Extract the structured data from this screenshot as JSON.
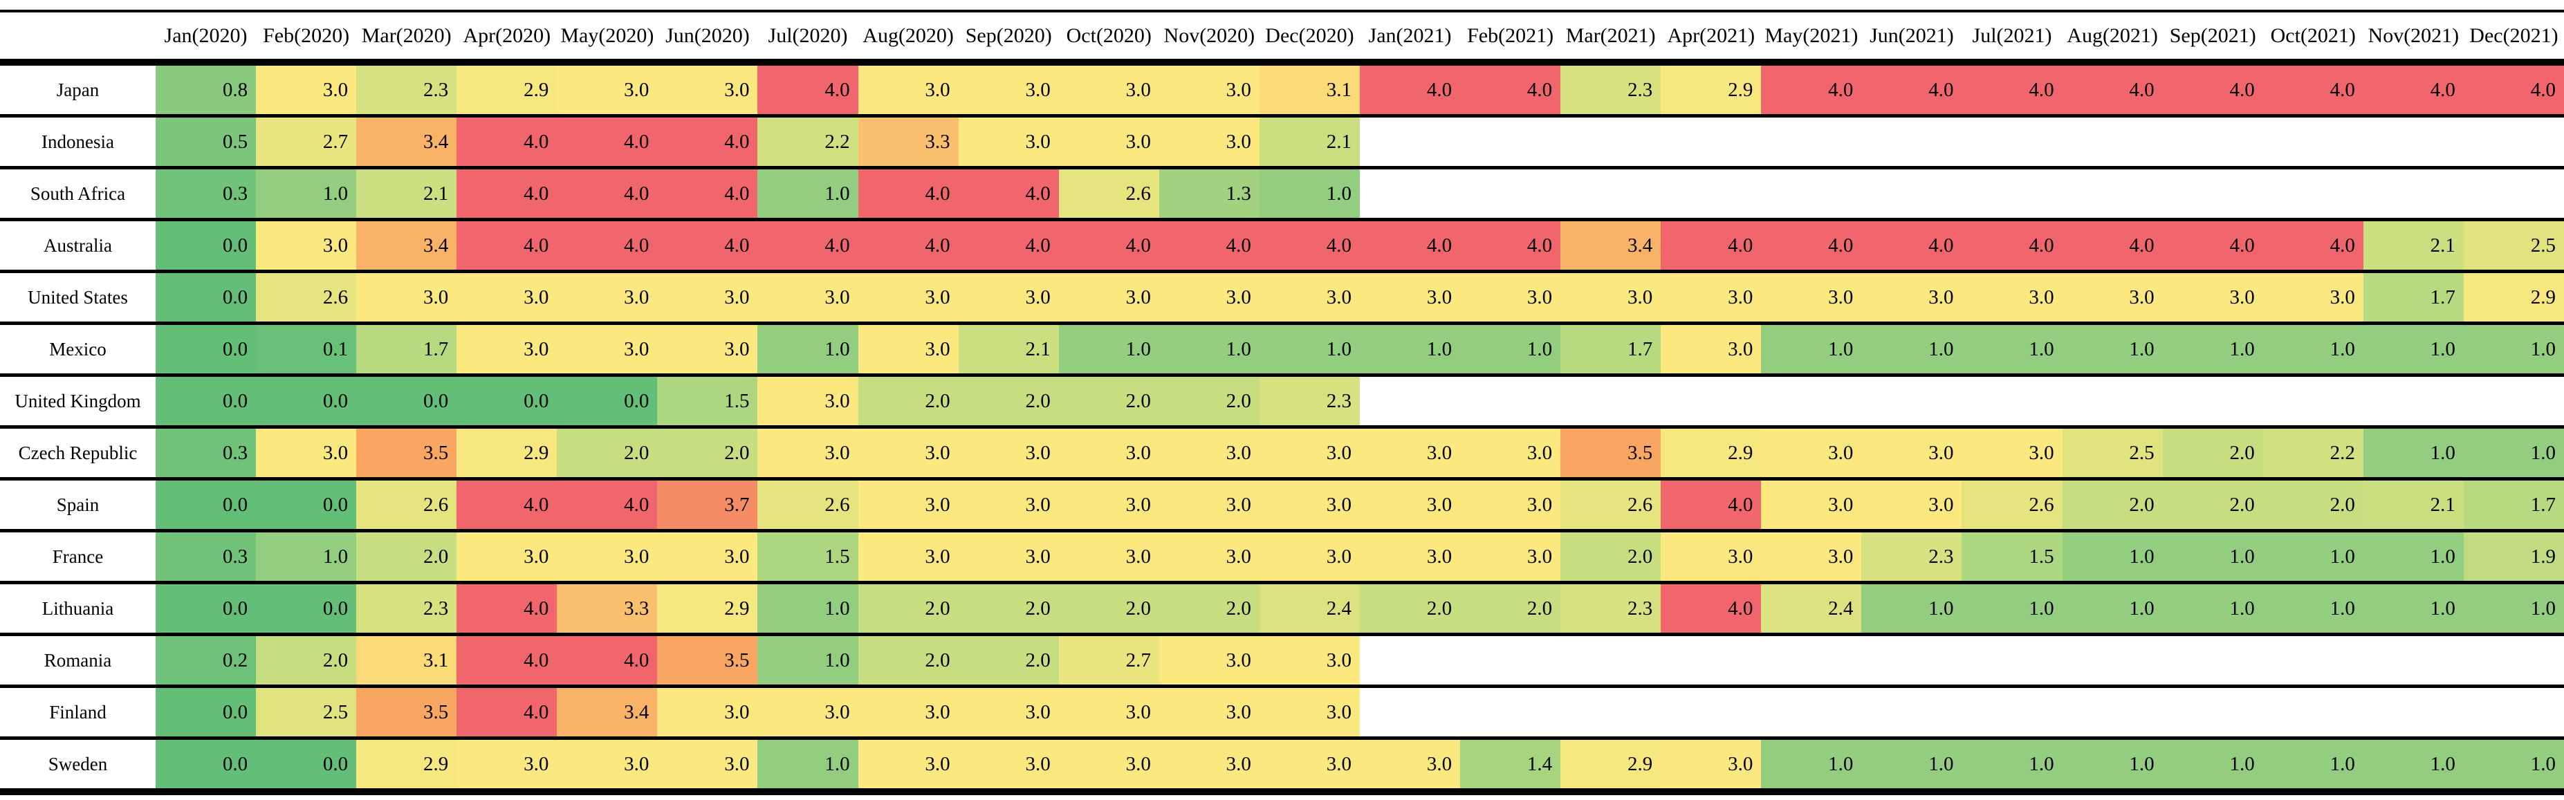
{
  "chart_data": {
    "type": "heatmap",
    "title": "",
    "columns": [
      "Jan(2020)",
      "Feb(2020)",
      "Mar(2020)",
      "Apr(2020)",
      "May(2020)",
      "Jun(2020)",
      "Jul(2020)",
      "Aug(2020)",
      "Sep(2020)",
      "Oct(2020)",
      "Nov(2020)",
      "Dec(2020)",
      "Jan(2021)",
      "Feb(2021)",
      "Mar(2021)",
      "Apr(2021)",
      "May(2021)",
      "Jun(2021)",
      "Jul(2021)",
      "Aug(2021)",
      "Sep(2021)",
      "Oct(2021)",
      "Nov(2021)",
      "Dec(2021)"
    ],
    "rows": [
      {
        "name": "Japan",
        "values": [
          0.8,
          3.0,
          2.3,
          2.9,
          3.0,
          3.0,
          4.0,
          3.0,
          3.0,
          3.0,
          3.0,
          3.1,
          4.0,
          4.0,
          2.3,
          2.9,
          4.0,
          4.0,
          4.0,
          4.0,
          4.0,
          4.0,
          4.0,
          4.0
        ]
      },
      {
        "name": "Indonesia",
        "values": [
          0.5,
          2.7,
          3.4,
          4.0,
          4.0,
          4.0,
          2.2,
          3.3,
          3.0,
          3.0,
          3.0,
          2.1,
          null,
          null,
          null,
          null,
          null,
          null,
          null,
          null,
          null,
          null,
          null,
          null
        ]
      },
      {
        "name": "South Africa",
        "values": [
          0.3,
          1.0,
          2.1,
          4.0,
          4.0,
          4.0,
          1.0,
          4.0,
          4.0,
          2.6,
          1.3,
          1.0,
          null,
          null,
          null,
          null,
          null,
          null,
          null,
          null,
          null,
          null,
          null,
          null
        ]
      },
      {
        "name": "Australia",
        "values": [
          0.0,
          3.0,
          3.4,
          4.0,
          4.0,
          4.0,
          4.0,
          4.0,
          4.0,
          4.0,
          4.0,
          4.0,
          4.0,
          4.0,
          3.4,
          4.0,
          4.0,
          4.0,
          4.0,
          4.0,
          4.0,
          4.0,
          2.1,
          2.5
        ]
      },
      {
        "name": "United States",
        "values": [
          0.0,
          2.6,
          3.0,
          3.0,
          3.0,
          3.0,
          3.0,
          3.0,
          3.0,
          3.0,
          3.0,
          3.0,
          3.0,
          3.0,
          3.0,
          3.0,
          3.0,
          3.0,
          3.0,
          3.0,
          3.0,
          3.0,
          1.7,
          2.9
        ]
      },
      {
        "name": "Mexico",
        "values": [
          0.0,
          0.1,
          1.7,
          3.0,
          3.0,
          3.0,
          1.0,
          3.0,
          2.1,
          1.0,
          1.0,
          1.0,
          1.0,
          1.0,
          1.7,
          3.0,
          1.0,
          1.0,
          1.0,
          1.0,
          1.0,
          1.0,
          1.0,
          1.0
        ]
      },
      {
        "name": "United Kingdom",
        "values": [
          0.0,
          0.0,
          0.0,
          0.0,
          0.0,
          1.5,
          3.0,
          2.0,
          2.0,
          2.0,
          2.0,
          2.3,
          null,
          null,
          null,
          null,
          null,
          null,
          null,
          null,
          null,
          null,
          null,
          null
        ]
      },
      {
        "name": "Czech Republic",
        "values": [
          0.3,
          3.0,
          3.5,
          2.9,
          2.0,
          2.0,
          3.0,
          3.0,
          3.0,
          3.0,
          3.0,
          3.0,
          3.0,
          3.0,
          3.5,
          2.9,
          3.0,
          3.0,
          3.0,
          2.5,
          2.0,
          2.2,
          1.0,
          1.0
        ]
      },
      {
        "name": "Spain",
        "values": [
          0.0,
          0.0,
          2.6,
          4.0,
          4.0,
          3.7,
          2.6,
          3.0,
          3.0,
          3.0,
          3.0,
          3.0,
          3.0,
          3.0,
          2.6,
          4.0,
          3.0,
          3.0,
          2.6,
          2.0,
          2.0,
          2.0,
          2.1,
          1.7
        ]
      },
      {
        "name": "France",
        "values": [
          0.3,
          1.0,
          2.0,
          3.0,
          3.0,
          3.0,
          1.5,
          3.0,
          3.0,
          3.0,
          3.0,
          3.0,
          3.0,
          3.0,
          2.0,
          3.0,
          3.0,
          2.3,
          1.5,
          1.0,
          1.0,
          1.0,
          1.0,
          1.9
        ]
      },
      {
        "name": "Lithuania",
        "values": [
          0.0,
          0.0,
          2.3,
          4.0,
          3.3,
          2.9,
          1.0,
          2.0,
          2.0,
          2.0,
          2.0,
          2.4,
          2.0,
          2.0,
          2.3,
          4.0,
          2.4,
          1.0,
          1.0,
          1.0,
          1.0,
          1.0,
          1.0,
          1.0
        ]
      },
      {
        "name": "Romania",
        "values": [
          0.2,
          2.0,
          3.1,
          4.0,
          4.0,
          3.5,
          1.0,
          2.0,
          2.0,
          2.7,
          3.0,
          3.0,
          null,
          null,
          null,
          null,
          null,
          null,
          null,
          null,
          null,
          null,
          null,
          null
        ]
      },
      {
        "name": "Finland",
        "values": [
          0.0,
          2.5,
          3.5,
          4.0,
          3.4,
          3.0,
          3.0,
          3.0,
          3.0,
          3.0,
          3.0,
          3.0,
          null,
          null,
          null,
          null,
          null,
          null,
          null,
          null,
          null,
          null,
          null,
          null
        ]
      },
      {
        "name": "Sweden",
        "values": [
          0.0,
          0.0,
          2.9,
          3.0,
          3.0,
          3.0,
          1.0,
          3.0,
          3.0,
          3.0,
          3.0,
          3.0,
          3.0,
          1.4,
          2.9,
          3.0,
          1.0,
          1.0,
          1.0,
          1.0,
          1.0,
          1.0,
          1.0,
          1.0
        ]
      }
    ],
    "vmin": 0,
    "vmax": 4,
    "value_decimals": 1,
    "grid": "horizontal-rules-only",
    "legend": "none",
    "colormap": {
      "blank": "#FFFFFF",
      "text": "#000000",
      "rule": "#000000",
      "stops": [
        [
          0.0,
          "#63BE78"
        ],
        [
          1.0,
          "#93CD7F"
        ],
        [
          2.0,
          "#C6DE80"
        ],
        [
          3.0,
          "#FBE87E"
        ],
        [
          3.5,
          "#F9A662"
        ],
        [
          4.0,
          "#F1656C"
        ]
      ]
    }
  }
}
